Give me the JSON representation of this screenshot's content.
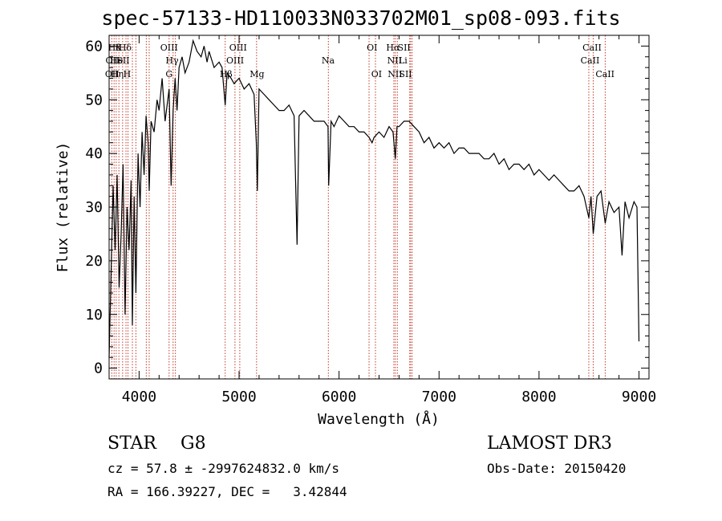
{
  "title": "spec-57133-HD110033N033702M01_sp08-093.fits",
  "info": {
    "object_class": "STAR",
    "subclass": "G8",
    "survey": "LAMOST DR3",
    "cz_text": "cz = 57.8 ± -2997624832.0 km/s",
    "obs_date": "Obs-Date: 20150420",
    "radec_text": "RA = 166.39227, DEC =   3.42844"
  },
  "chart_data": {
    "type": "line",
    "title": "spec-57133-HD110033N033702M01_sp08-093.fits",
    "xlabel": "Wavelength (Å)",
    "ylabel": "Flux (relative)",
    "xlim": [
      3700,
      9100
    ],
    "ylim": [
      -2,
      62
    ],
    "xticks": [
      4000,
      5000,
      6000,
      7000,
      8000,
      9000
    ],
    "yticks": [
      0,
      10,
      20,
      30,
      40,
      50,
      60
    ],
    "series": [
      {
        "name": "flux",
        "x": [
          3700,
          3720,
          3740,
          3760,
          3780,
          3800,
          3820,
          3840,
          3860,
          3880,
          3900,
          3920,
          3933,
          3950,
          3968,
          3990,
          4010,
          4030,
          4050,
          4070,
          4090,
          4101,
          4120,
          4150,
          4180,
          4200,
          4230,
          4260,
          4300,
          4320,
          4340,
          4360,
          4380,
          4400,
          4430,
          4460,
          4500,
          4540,
          4580,
          4620,
          4650,
          4680,
          4700,
          4750,
          4800,
          4830,
          4861,
          4880,
          4920,
          4950,
          5000,
          5050,
          5100,
          5150,
          5172,
          5183,
          5200,
          5250,
          5300,
          5350,
          5400,
          5450,
          5500,
          5550,
          5580,
          5600,
          5650,
          5700,
          5750,
          5800,
          5850,
          5890,
          5896,
          5920,
          5950,
          6000,
          6050,
          6100,
          6150,
          6200,
          6250,
          6300,
          6330,
          6350,
          6400,
          6450,
          6500,
          6540,
          6563,
          6580,
          6600,
          6650,
          6700,
          6750,
          6800,
          6850,
          6900,
          6950,
          7000,
          7050,
          7100,
          7150,
          7200,
          7250,
          7300,
          7350,
          7400,
          7450,
          7500,
          7550,
          7600,
          7650,
          7700,
          7750,
          7800,
          7850,
          7900,
          7950,
          8000,
          8050,
          8100,
          8150,
          8200,
          8250,
          8300,
          8350,
          8400,
          8450,
          8498,
          8520,
          8542,
          8580,
          8620,
          8662,
          8700,
          8750,
          8800,
          8830,
          8860,
          8900,
          8950,
          8980,
          9000
        ],
        "values": [
          2,
          18,
          34,
          22,
          36,
          15,
          25,
          38,
          10,
          30,
          22,
          35,
          8,
          32,
          14,
          40,
          30,
          44,
          36,
          47,
          42,
          33,
          46,
          44,
          50,
          48,
          54,
          46,
          52,
          34,
          48,
          54,
          48,
          56,
          58,
          55,
          57,
          61,
          59,
          58,
          60,
          57,
          59,
          56,
          57,
          56,
          49,
          55,
          54,
          53,
          54,
          52,
          53,
          51,
          42,
          33,
          52,
          51,
          50,
          49,
          48,
          48,
          49,
          47,
          23,
          47,
          48,
          47,
          46,
          46,
          46,
          45,
          34,
          46,
          45,
          47,
          46,
          45,
          45,
          44,
          44,
          43,
          42,
          43,
          44,
          43,
          45,
          44,
          39,
          45,
          45,
          46,
          46,
          45,
          44,
          42,
          43,
          41,
          42,
          41,
          42,
          40,
          41,
          41,
          40,
          40,
          40,
          39,
          39,
          40,
          38,
          39,
          37,
          38,
          38,
          37,
          38,
          36,
          37,
          36,
          35,
          36,
          35,
          34,
          33,
          33,
          34,
          32,
          28,
          32,
          25,
          32,
          33,
          27,
          31,
          29,
          30,
          21,
          31,
          28,
          31,
          30,
          5
        ]
      }
    ],
    "line_labels": [
      {
        "label": "Hδ",
        "row": 1
      },
      {
        "label": "K",
        "row": 1
      },
      {
        "label": "Hδ",
        "row": 1
      },
      {
        "label": "OII",
        "row": 2
      },
      {
        "label": "He",
        "row": 2
      },
      {
        "label": "SII",
        "row": 2
      },
      {
        "label": "OII",
        "row": 3
      },
      {
        "label": "Hη",
        "row": 3
      },
      {
        "label": "H",
        "row": 3
      },
      {
        "label": "OIII",
        "row": 1
      },
      {
        "label": "Hγ",
        "row": 2
      },
      {
        "label": "G",
        "row": 3
      },
      {
        "label": "OIII",
        "row": 1
      },
      {
        "label": "OIII",
        "row": 2
      },
      {
        "label": "Hβ",
        "row": 3
      },
      {
        "label": "Mg",
        "row": 3
      },
      {
        "label": "Na",
        "row": 2
      },
      {
        "label": "OI",
        "row": 1
      },
      {
        "label": "OI",
        "row": 3
      },
      {
        "label": "Hα",
        "row": 1
      },
      {
        "label": "SII",
        "row": 1
      },
      {
        "label": "NII",
        "row": 2
      },
      {
        "label": "Li",
        "row": 2
      },
      {
        "label": "NII",
        "row": 3
      },
      {
        "label": "SII",
        "row": 3
      },
      {
        "label": "CaII",
        "row": 1
      },
      {
        "label": "CaII",
        "row": 2
      },
      {
        "label": "CaII",
        "row": 3
      }
    ],
    "line_markers": [
      3727,
      3750,
      3771,
      3798,
      3835,
      3869,
      3889,
      3933,
      3968,
      4072,
      4101,
      4300,
      4340,
      4363,
      4861,
      4959,
      5007,
      5175,
      5893,
      6300,
      6364,
      6548,
      6563,
      6583,
      6707,
      6716,
      6731,
      8498,
      8542,
      8662
    ]
  }
}
